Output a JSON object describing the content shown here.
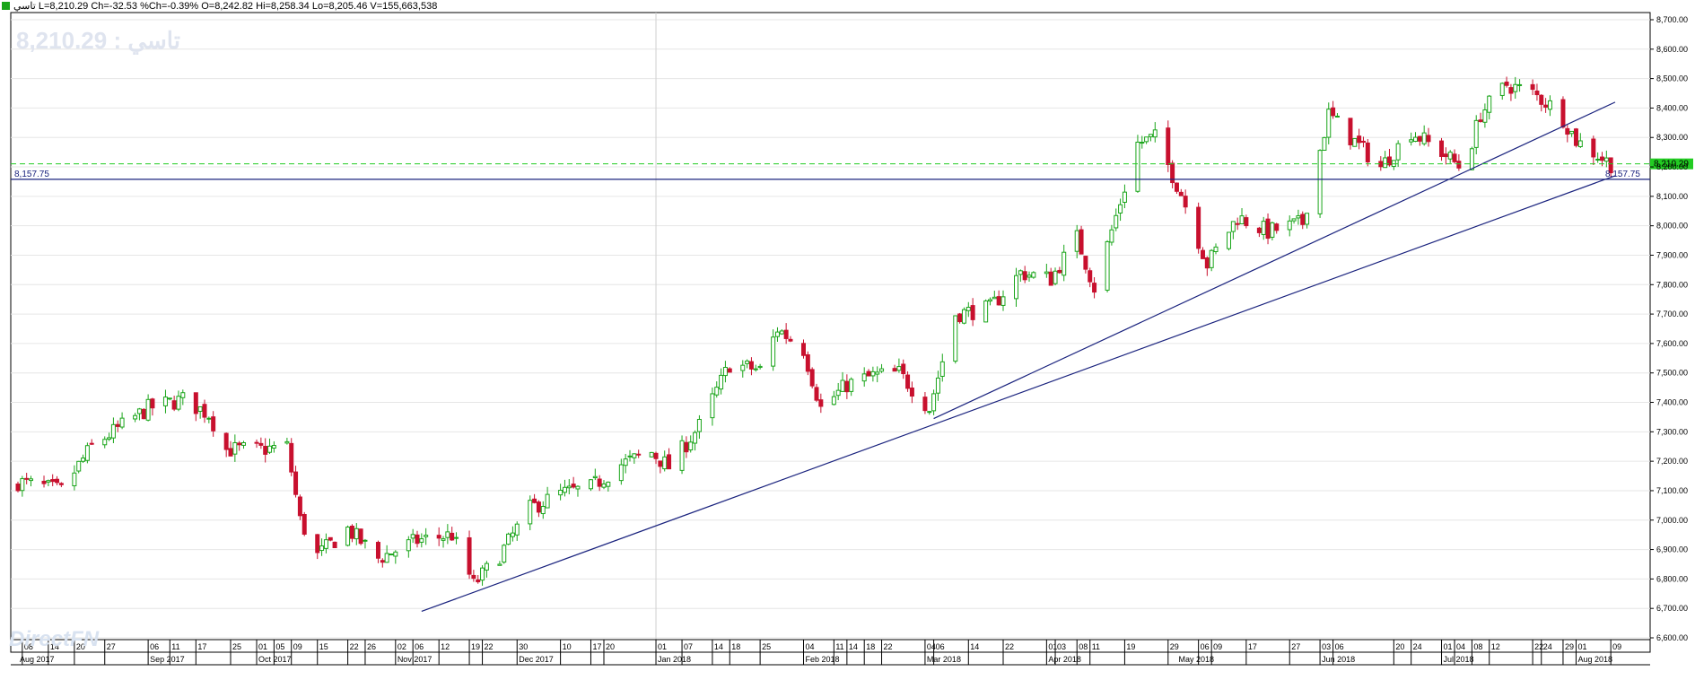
{
  "header": {
    "name": "تاسي",
    "last": "L=8,210.29",
    "change": "Ch=-32.53",
    "pct_change": "%Ch=-0.39%",
    "open": "O=8,242.82",
    "high": "Hi=8,258.34",
    "low": "Lo=8,205.46",
    "volume": "V=155,663,538"
  },
  "overlay": {
    "big_label": "تاسي : 8,210.29",
    "watermark": "DirectFN"
  },
  "colors": {
    "up": "#1aa51a",
    "down": "#c8102e",
    "trend": "#1a237e",
    "last_line": "#22cc22",
    "grid": "#e6e6e6"
  },
  "chart_data": {
    "type": "candlestick",
    "title": "تاسي",
    "ylim": [
      6550,
      8750
    ],
    "y_ticks": [
      "6,600.00",
      "6,700.00",
      "6,800.00",
      "6,900.00",
      "7,000.00",
      "7,100.00",
      "7,200.00",
      "7,300.00",
      "7,400.00",
      "7,500.00",
      "7,600.00",
      "7,700.00",
      "7,800.00",
      "7,900.00",
      "8,000.00",
      "8,100.00",
      "8,200.00",
      "8,300.00",
      "8,400.00",
      "8,500.00",
      "8,600.00",
      "8,700.00"
    ],
    "y_tick_values": [
      6600,
      6700,
      6800,
      6900,
      7000,
      7100,
      7200,
      7300,
      7400,
      7500,
      7600,
      7700,
      7800,
      7900,
      8000,
      8100,
      8200,
      8300,
      8400,
      8500,
      8600,
      8700
    ],
    "x_start": "2017-08-07",
    "x_end": "2018-08-10",
    "day_ticks": [
      {
        "date": "2017-08-08",
        "label": "08"
      },
      {
        "date": "2017-08-14",
        "label": "14"
      },
      {
        "date": "2017-08-20",
        "label": "20"
      },
      {
        "date": "2017-08-27",
        "label": "27"
      },
      {
        "date": "2017-09-06",
        "label": "06"
      },
      {
        "date": "2017-09-11",
        "label": "11"
      },
      {
        "date": "2017-09-17",
        "label": "17"
      },
      {
        "date": "2017-09-25",
        "label": "25"
      },
      {
        "date": "2017-10-01",
        "label": "01"
      },
      {
        "date": "2017-10-05",
        "label": "05"
      },
      {
        "date": "2017-10-09",
        "label": "09"
      },
      {
        "date": "2017-10-15",
        "label": "15"
      },
      {
        "date": "2017-10-22",
        "label": "22"
      },
      {
        "date": "2017-10-26",
        "label": "26"
      },
      {
        "date": "2017-11-02",
        "label": "02"
      },
      {
        "date": "2017-11-06",
        "label": "06"
      },
      {
        "date": "2017-11-12",
        "label": "12"
      },
      {
        "date": "2017-11-19",
        "label": "19"
      },
      {
        "date": "2017-11-22",
        "label": "22"
      },
      {
        "date": "2017-11-30",
        "label": "30"
      },
      {
        "date": "2017-12-10",
        "label": "10"
      },
      {
        "date": "2017-12-17",
        "label": "17"
      },
      {
        "date": "2017-12-20",
        "label": "20"
      },
      {
        "date": "2018-01-01",
        "label": "01"
      },
      {
        "date": "2018-01-07",
        "label": "07"
      },
      {
        "date": "2018-01-14",
        "label": "14"
      },
      {
        "date": "2018-01-18",
        "label": "18"
      },
      {
        "date": "2018-01-25",
        "label": "25"
      },
      {
        "date": "2018-02-04",
        "label": "04"
      },
      {
        "date": "2018-02-11",
        "label": "11"
      },
      {
        "date": "2018-02-14",
        "label": "14"
      },
      {
        "date": "2018-02-18",
        "label": "18"
      },
      {
        "date": "2018-02-22",
        "label": "22"
      },
      {
        "date": "2018-03-04",
        "label": "04"
      },
      {
        "date": "2018-03-06",
        "label": "06"
      },
      {
        "date": "2018-03-14",
        "label": "14"
      },
      {
        "date": "2018-03-22",
        "label": "22"
      },
      {
        "date": "2018-04-01",
        "label": "01"
      },
      {
        "date": "2018-04-03",
        "label": "03"
      },
      {
        "date": "2018-04-08",
        "label": "08"
      },
      {
        "date": "2018-04-11",
        "label": "11"
      },
      {
        "date": "2018-04-19",
        "label": "19"
      },
      {
        "date": "2018-04-29",
        "label": "29"
      },
      {
        "date": "2018-05-06",
        "label": "06"
      },
      {
        "date": "2018-05-09",
        "label": "09"
      },
      {
        "date": "2018-05-17",
        "label": "17"
      },
      {
        "date": "2018-05-27",
        "label": "27"
      },
      {
        "date": "2018-06-03",
        "label": "03"
      },
      {
        "date": "2018-06-06",
        "label": "06"
      },
      {
        "date": "2018-06-20",
        "label": "20"
      },
      {
        "date": "2018-06-24",
        "label": "24"
      },
      {
        "date": "2018-07-01",
        "label": "01"
      },
      {
        "date": "2018-07-04",
        "label": "04"
      },
      {
        "date": "2018-07-08",
        "label": "08"
      },
      {
        "date": "2018-07-12",
        "label": "12"
      },
      {
        "date": "2018-07-22",
        "label": "22"
      },
      {
        "date": "2018-07-24",
        "label": "24"
      },
      {
        "date": "2018-07-29",
        "label": "29"
      },
      {
        "date": "2018-08-01",
        "label": "01"
      },
      {
        "date": "2018-08-09",
        "label": "09"
      }
    ],
    "month_ticks": [
      {
        "date": "2017-08-07",
        "label": "Aug 2017"
      },
      {
        "date": "2017-09-06",
        "label": "Sep 2017"
      },
      {
        "date": "2017-10-01",
        "label": "Oct 2017"
      },
      {
        "date": "2017-11-02",
        "label": "Nov 2017"
      },
      {
        "date": "2017-11-30",
        "label": "Dec 2017"
      },
      {
        "date": "2018-01-01",
        "label": "Jan 2018"
      },
      {
        "date": "2018-02-04",
        "label": "Feb 2018"
      },
      {
        "date": "2018-03-04",
        "label": "Mar 2018"
      },
      {
        "date": "2018-04-01",
        "label": "Apr 2018"
      },
      {
        "date": "2018-05-01",
        "label": "May 2018"
      },
      {
        "date": "2018-06-03",
        "label": "Jun 2018"
      },
      {
        "date": "2018-07-01",
        "label": "Jul 2018"
      },
      {
        "date": "2018-08-01",
        "label": "Aug 2018"
      }
    ],
    "vline_date": "2018-01-01",
    "h_level": {
      "value": 8157.75,
      "label": "8,157.75"
    },
    "last_price": {
      "value": 8210.29,
      "label": "8,210.29"
    },
    "trendlines": [
      {
        "from": {
          "date": "2017-11-08",
          "value": 6690
        },
        "to": {
          "date": "2018-08-10",
          "value": 8170
        }
      },
      {
        "from": {
          "date": "2018-03-06",
          "value": 7345
        },
        "to": {
          "date": "2018-08-10",
          "value": 8420
        }
      }
    ],
    "closes": [
      [
        "2017-08-07",
        7130
      ],
      [
        "2017-08-17",
        7100
      ],
      [
        "2017-08-24",
        7250
      ],
      [
        "2017-09-06",
        7380
      ],
      [
        "2017-09-14",
        7410
      ],
      [
        "2017-09-20",
        7360
      ],
      [
        "2017-09-24",
        7240
      ],
      [
        "2017-10-02",
        7240
      ],
      [
        "2017-10-08",
        7250
      ],
      [
        "2017-10-11",
        7000
      ],
      [
        "2017-10-15",
        6880
      ],
      [
        "2017-10-22",
        6970
      ],
      [
        "2017-10-29",
        6870
      ],
      [
        "2017-11-07",
        6930
      ],
      [
        "2017-11-15",
        6950
      ],
      [
        "2017-11-20",
        6780
      ],
      [
        "2017-11-26",
        6880
      ],
      [
        "2017-12-03",
        7040
      ],
      [
        "2017-12-10",
        7090
      ],
      [
        "2017-12-17",
        7110
      ],
      [
        "2017-12-24",
        7190
      ],
      [
        "2017-12-31",
        7230
      ],
      [
        "2018-01-04",
        7180
      ],
      [
        "2018-01-11",
        7320
      ],
      [
        "2018-01-18",
        7530
      ],
      [
        "2018-01-25",
        7510
      ],
      [
        "2018-01-29",
        7650
      ],
      [
        "2018-02-04",
        7580
      ],
      [
        "2018-02-08",
        7380
      ],
      [
        "2018-02-14",
        7460
      ],
      [
        "2018-02-20",
        7490
      ],
      [
        "2018-02-26",
        7500
      ],
      [
        "2018-03-05",
        7380
      ],
      [
        "2018-03-11",
        7700
      ],
      [
        "2018-03-19",
        7720
      ],
      [
        "2018-03-26",
        7840
      ],
      [
        "2018-04-02",
        7820
      ],
      [
        "2018-04-08",
        7960
      ],
      [
        "2018-04-12",
        7790
      ],
      [
        "2018-04-18",
        8080
      ],
      [
        "2018-04-22",
        8280
      ],
      [
        "2018-04-26",
        8300
      ],
      [
        "2018-05-02",
        8110
      ],
      [
        "2018-05-08",
        7870
      ],
      [
        "2018-05-15",
        8030
      ],
      [
        "2018-05-22",
        7980
      ],
      [
        "2018-05-30",
        8010
      ],
      [
        "2018-06-05",
        8380
      ],
      [
        "2018-06-10",
        8300
      ],
      [
        "2018-06-17",
        8200
      ],
      [
        "2018-06-24",
        8320
      ],
      [
        "2018-07-02",
        8240
      ],
      [
        "2018-07-06",
        8190
      ],
      [
        "2018-07-10",
        8380
      ],
      [
        "2018-07-16",
        8480
      ],
      [
        "2018-07-22",
        8450
      ],
      [
        "2018-07-28",
        8390
      ],
      [
        "2018-08-01",
        8290
      ],
      [
        "2018-08-06",
        8240
      ],
      [
        "2018-08-09",
        8210
      ]
    ]
  }
}
